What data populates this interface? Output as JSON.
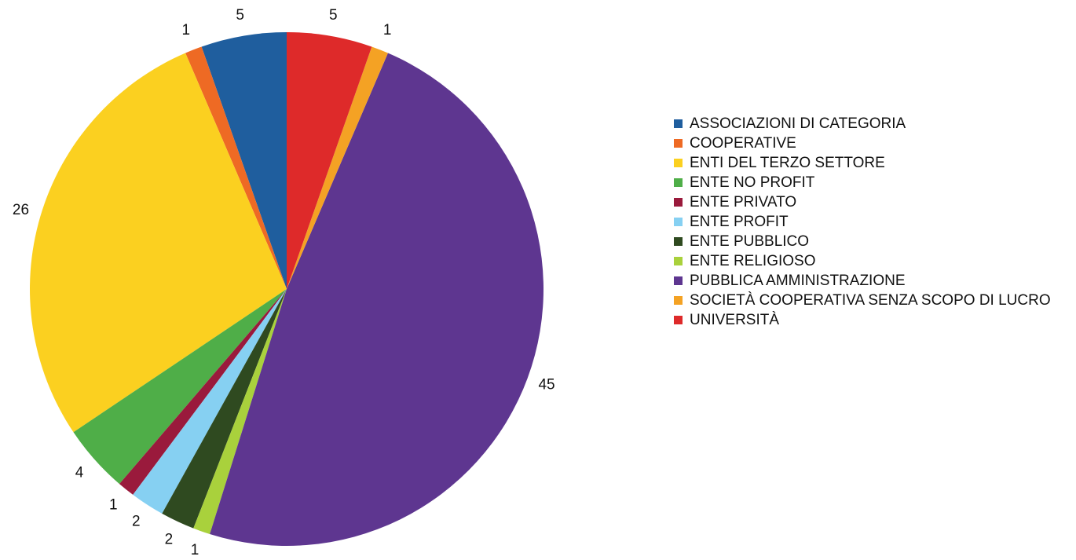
{
  "chart_data": {
    "type": "pie",
    "categories": [
      "ASSOCIAZIONI DI CATEGORIA",
      "COOPERATIVE",
      "ENTI DEL TERZO SETTORE",
      "ENTE NO PROFIT",
      "ENTE PRIVATO",
      "ENTE PROFIT",
      "ENTE PUBBLICO",
      "ENTE RELIGIOSO",
      "PUBBLICA AMMINISTRAZIONE",
      "SOCIETÀ COOPERATIVA SENZA SCOPO DI LUCRO",
      "UNIVERSITÀ"
    ],
    "values": [
      5,
      1,
      26,
      4,
      1,
      2,
      2,
      1,
      45,
      1,
      5
    ],
    "colors": [
      "#1f5e9e",
      "#ee6a24",
      "#fbd020",
      "#4fae48",
      "#9a1a3c",
      "#86d0f2",
      "#2f4a20",
      "#a9d13c",
      "#5e3690",
      "#f4a224",
      "#de2a2a"
    ]
  }
}
